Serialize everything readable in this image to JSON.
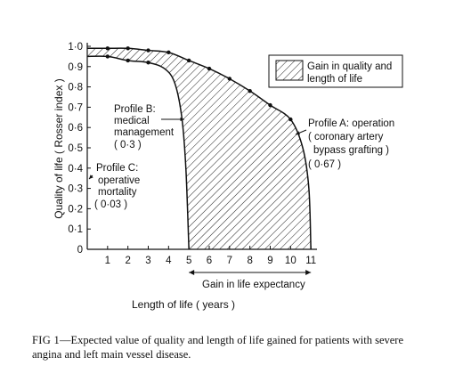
{
  "chart_data": {
    "type": "area",
    "xlabel": "Length of life ( years )",
    "ylabel": "Quality of life ( Rosser index )",
    "xlim": [
      0,
      12
    ],
    "ylim": [
      0,
      1.0
    ],
    "x_ticks": [
      "1",
      "2",
      "3",
      "4",
      "5",
      "6",
      "7",
      "8",
      "9",
      "10",
      "11"
    ],
    "y_ticks": [
      "0",
      "0·1",
      "0·2",
      "0·3",
      "0·4",
      "0·5",
      "0·6",
      "0·7",
      "0·8",
      "0·9",
      "1·0"
    ],
    "legend": {
      "label_line1": "Gain in quality and",
      "label_line2": "length of life",
      "placement": "top-right"
    },
    "series": [
      {
        "name": "Profile A",
        "points": [
          [
            0,
            0.99
          ],
          [
            1,
            0.99
          ],
          [
            2,
            0.99
          ],
          [
            3,
            0.98
          ],
          [
            4,
            0.97
          ],
          [
            5,
            0.93
          ],
          [
            6,
            0.89
          ],
          [
            7,
            0.84
          ],
          [
            8,
            0.78
          ],
          [
            9,
            0.71
          ],
          [
            10,
            0.64
          ],
          [
            10.6,
            0.5
          ],
          [
            10.9,
            0.3
          ],
          [
            11,
            0
          ]
        ]
      },
      {
        "name": "Profile B",
        "points": [
          [
            0,
            0.95
          ],
          [
            1,
            0.95
          ],
          [
            2,
            0.93
          ],
          [
            3,
            0.92
          ],
          [
            3.8,
            0.89
          ],
          [
            4.3,
            0.82
          ],
          [
            4.65,
            0.65
          ],
          [
            4.85,
            0.4
          ],
          [
            5,
            0
          ]
        ]
      }
    ],
    "annotations": {
      "profile_a": [
        "Profile A:  operation",
        "( coronary artery",
        "bypass grafting )",
        "( 0·67 )"
      ],
      "profile_b": [
        "Profile B:",
        "medical",
        "management",
        "( 0·3 )"
      ],
      "profile_c": [
        "Profile C:",
        "operative",
        "mortality",
        "( 0·03 )"
      ],
      "gain": "Gain in life expectancy",
      "gain_range": [
        5,
        11
      ]
    }
  },
  "caption": {
    "label": "FIG 1",
    "text": "—Expected value of quality and length of life gained for patients with severe angina and left main vessel disease."
  }
}
